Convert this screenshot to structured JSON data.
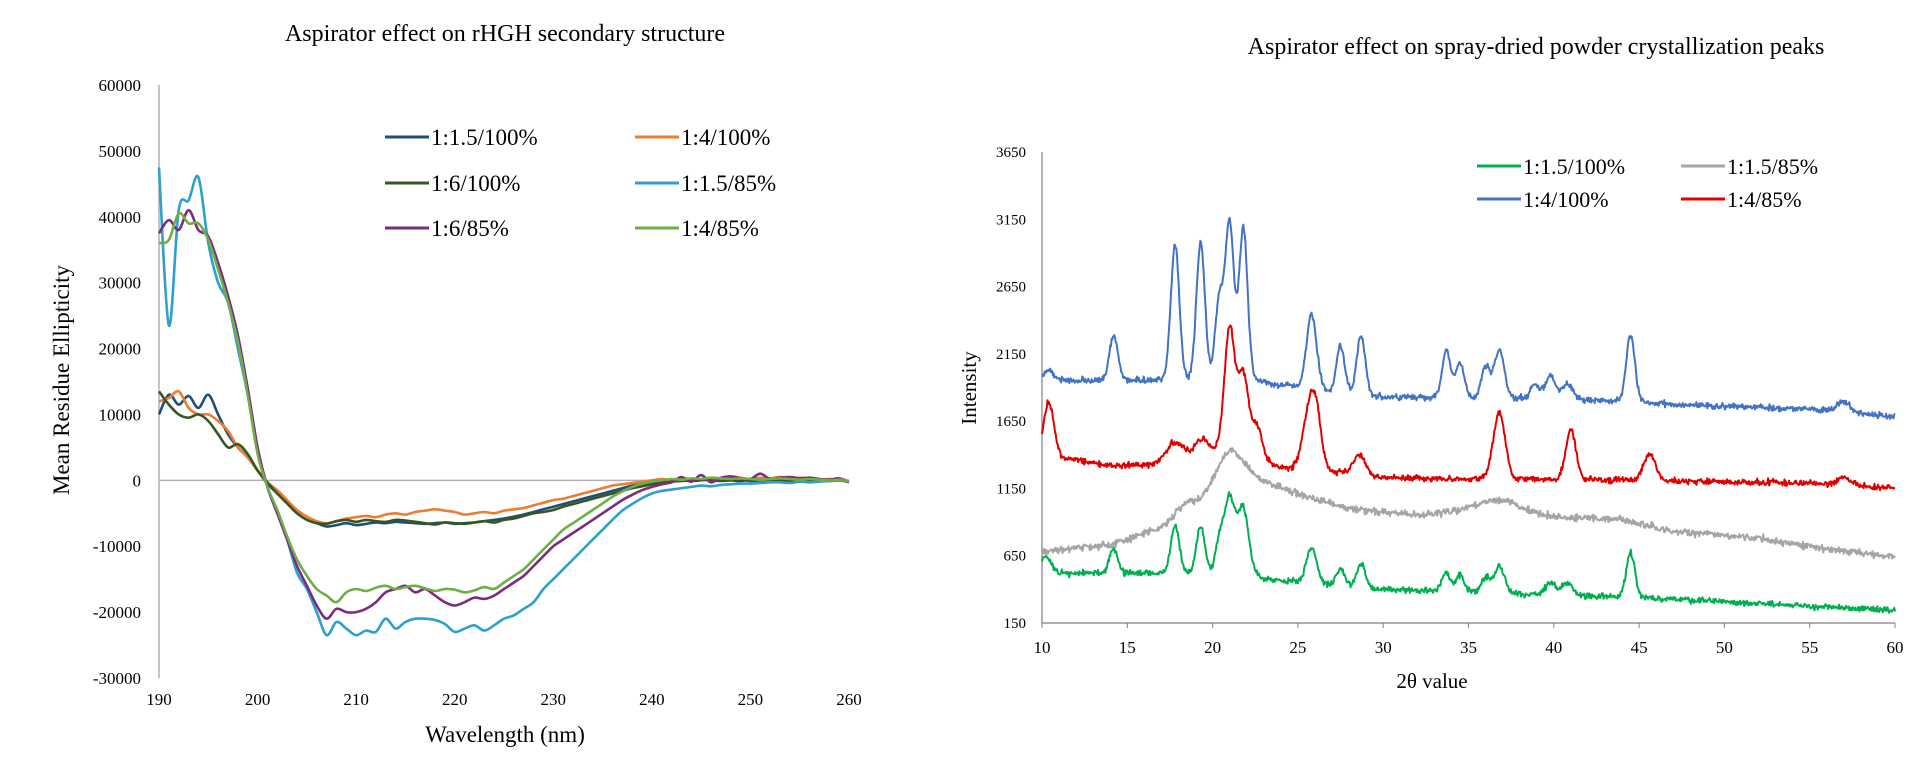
{
  "chart_data": [
    {
      "type": "line",
      "title": "Aspirator effect on rHGH secondary structure",
      "xlabel": "Wavelength (nm)",
      "ylabel": "Mean Residue Ellipticity",
      "xlim": [
        190,
        260
      ],
      "ylim": [
        -30000,
        60000
      ],
      "xticks": [
        190,
        200,
        210,
        220,
        230,
        240,
        250,
        260
      ],
      "xtick_labels": [
        "190",
        "200",
        "210",
        "220",
        "230",
        "240",
        "250",
        "260"
      ],
      "yticks": [
        -30000,
        -20000,
        -10000,
        0,
        10000,
        20000,
        30000,
        40000,
        50000,
        60000
      ],
      "ytick_labels": [
        "-30000",
        "-20000",
        "-10000",
        "0",
        "10000",
        "20000",
        "30000",
        "40000",
        "50000",
        "60000"
      ],
      "grid": false,
      "legend_position": "top-right",
      "x": [
        190,
        191,
        192,
        193,
        194,
        195,
        196,
        197,
        198,
        199,
        200,
        201,
        202,
        203,
        204,
        205,
        206,
        207,
        208,
        209,
        210,
        211,
        212,
        213,
        214,
        215,
        216,
        217,
        218,
        219,
        220,
        221,
        222,
        223,
        224,
        225,
        226,
        227,
        228,
        229,
        230,
        231,
        232,
        233,
        234,
        235,
        236,
        237,
        238,
        239,
        240,
        241,
        242,
        243,
        244,
        245,
        246,
        247,
        248,
        249,
        250,
        251,
        252,
        253,
        254,
        255,
        256,
        257,
        258,
        259,
        260
      ],
      "series": [
        {
          "name": "1:1.5/100%",
          "color": "#1f4e79",
          "values": [
            10000,
            13000,
            11500,
            12800,
            11000,
            13000,
            10000,
            7000,
            5000,
            3500,
            1500,
            -500,
            -2000,
            -3500,
            -5000,
            -6000,
            -6500,
            -7000,
            -6800,
            -6500,
            -6800,
            -6600,
            -6400,
            -6500,
            -6300,
            -6400,
            -6500,
            -6600,
            -6500,
            -6400,
            -6600,
            -6500,
            -6400,
            -6200,
            -6000,
            -5800,
            -5500,
            -5200,
            -4800,
            -4400,
            -4000,
            -3600,
            -3200,
            -2800,
            -2400,
            -2000,
            -1600,
            -1200,
            -800,
            -500,
            -300,
            -200,
            -100,
            0,
            -100,
            0,
            200,
            100,
            0,
            -100,
            100,
            0,
            100,
            -100,
            0,
            100,
            0,
            -100,
            100,
            0,
            -200
          ]
        },
        {
          "name": "1:4/100%",
          "color": "#ed7d31",
          "values": [
            12000,
            12500,
            13500,
            11000,
            10000,
            10000,
            9000,
            7500,
            5000,
            3500,
            1500,
            -300,
            -1500,
            -3000,
            -4500,
            -5500,
            -6200,
            -6500,
            -6200,
            -5800,
            -5600,
            -5400,
            -5600,
            -5200,
            -5000,
            -5200,
            -4800,
            -4600,
            -4400,
            -4600,
            -4800,
            -5200,
            -5000,
            -4800,
            -5000,
            -4600,
            -4400,
            -4200,
            -3800,
            -3400,
            -3000,
            -2800,
            -2400,
            -2000,
            -1600,
            -1200,
            -800,
            -600,
            -400,
            -200,
            0,
            200,
            0,
            300,
            200,
            100,
            300,
            200,
            600,
            400,
            200,
            400,
            300,
            500,
            200,
            400,
            300,
            100,
            200,
            0,
            -300
          ]
        },
        {
          "name": "1:6/100%",
          "color": "#375623",
          "values": [
            13500,
            11500,
            10000,
            9500,
            10000,
            9000,
            7000,
            5000,
            5500,
            4000,
            1500,
            -300,
            -2000,
            -3500,
            -5000,
            -6000,
            -6500,
            -6600,
            -6200,
            -6000,
            -6300,
            -6000,
            -6200,
            -6300,
            -6000,
            -6100,
            -6300,
            -6500,
            -6700,
            -6400,
            -6500,
            -6600,
            -6400,
            -6200,
            -6400,
            -6000,
            -5800,
            -5400,
            -5000,
            -4800,
            -4500,
            -4000,
            -3600,
            -3200,
            -2800,
            -2400,
            -2000,
            -1600,
            -1200,
            -900,
            -600,
            -400,
            -200,
            -100,
            0,
            100,
            0,
            -100,
            0,
            100,
            -100,
            0,
            100,
            0,
            -100,
            0,
            100,
            0,
            -100,
            0,
            -100
          ]
        },
        {
          "name": "1:1.5/85%",
          "color": "#2e9fd0",
          "values": [
            47500,
            23500,
            41000,
            42500,
            46000,
            36000,
            30000,
            27000,
            20000,
            13000,
            4500,
            -1000,
            -5000,
            -9000,
            -14000,
            -16500,
            -20000,
            -23500,
            -21500,
            -22500,
            -23500,
            -22800,
            -23000,
            -21000,
            -22500,
            -21500,
            -21000,
            -21000,
            -21200,
            -21800,
            -23000,
            -22500,
            -22000,
            -22800,
            -22000,
            -21000,
            -20500,
            -19500,
            -18500,
            -16500,
            -15000,
            -13500,
            -12000,
            -10500,
            -9000,
            -7500,
            -6000,
            -4600,
            -3600,
            -2700,
            -2000,
            -1600,
            -1400,
            -1200,
            -1000,
            -800,
            -900,
            -700,
            -600,
            -500,
            -500,
            -400,
            -300,
            -300,
            -400,
            -200,
            -300,
            -200,
            -100,
            0,
            -200
          ]
        },
        {
          "name": "1:6/85%",
          "color": "#7b2c7f",
          "values": [
            37500,
            39500,
            38000,
            41000,
            38000,
            37000,
            33000,
            28000,
            22000,
            14000,
            5000,
            -1000,
            -5000,
            -9000,
            -13000,
            -16000,
            -19000,
            -21000,
            -19500,
            -20000,
            -20000,
            -19500,
            -18500,
            -17000,
            -16500,
            -16000,
            -17000,
            -16500,
            -17500,
            -18500,
            -19000,
            -18500,
            -17800,
            -18000,
            -17500,
            -16500,
            -15500,
            -14500,
            -13000,
            -11500,
            -10000,
            -9000,
            -8000,
            -7000,
            -6000,
            -5000,
            -4000,
            -3000,
            -2200,
            -1500,
            -1000,
            -600,
            -300,
            500,
            -200,
            800,
            -300,
            400,
            600,
            300,
            200,
            1000,
            200,
            400,
            500,
            300,
            400,
            200,
            100,
            300,
            -200
          ]
        },
        {
          "name": "1:4/85%",
          "color": "#70ad47",
          "values": [
            36000,
            36500,
            40500,
            39000,
            39000,
            36500,
            32000,
            27000,
            21000,
            13000,
            4000,
            -1000,
            -4500,
            -8500,
            -12000,
            -14500,
            -16500,
            -17500,
            -18500,
            -17000,
            -16500,
            -16800,
            -16300,
            -16000,
            -16500,
            -16200,
            -16000,
            -16400,
            -16800,
            -16500,
            -16600,
            -17000,
            -16700,
            -16200,
            -16500,
            -15500,
            -14500,
            -13500,
            -12000,
            -10500,
            -9000,
            -7500,
            -6500,
            -5500,
            -4500,
            -3500,
            -2500,
            -1700,
            -1000,
            -500,
            -200,
            0,
            200,
            100,
            300,
            200,
            400,
            300,
            200,
            300,
            200,
            100,
            200,
            300,
            200,
            100,
            200,
            100,
            0,
            100,
            -100
          ]
        }
      ]
    },
    {
      "type": "line",
      "title": "Aspirator effect on spray-dried powder crystallization peaks",
      "xlabel": "2θ value",
      "ylabel": "Intensity",
      "xlim": [
        10,
        60
      ],
      "ylim": [
        150,
        3650
      ],
      "xticks": [
        10,
        15,
        20,
        25,
        30,
        35,
        40,
        45,
        50,
        55,
        60
      ],
      "xtick_labels": [
        "10",
        "15",
        "20",
        "25",
        "30",
        "35",
        "40",
        "45",
        "50",
        "55",
        "60"
      ],
      "yticks": [
        150,
        650,
        1150,
        1650,
        2150,
        2650,
        3150,
        3650
      ],
      "ytick_labels": [
        "150",
        "650",
        "1150",
        "1650",
        "2150",
        "2650",
        "3150",
        "3650"
      ],
      "grid": false,
      "legend_position": "top-right",
      "series": [
        {
          "name": "1:1.5/100%",
          "color": "#00b050",
          "baseline": [
            [
              10,
              520
            ],
            [
              20,
              520
            ],
            [
              21,
              650
            ],
            [
              23,
              480
            ],
            [
              30,
              400
            ],
            [
              45,
              340
            ],
            [
              50,
              310
            ],
            [
              60,
              240
            ]
          ],
          "peaks": [
            [
              10.2,
              130,
              0.3
            ],
            [
              14.2,
              180,
              0.25
            ],
            [
              17.8,
              350,
              0.25
            ],
            [
              19.3,
              350,
              0.25
            ],
            [
              20.4,
              200,
              0.25
            ],
            [
              21.0,
              430,
              0.3
            ],
            [
              21.8,
              430,
              0.3
            ],
            [
              25.8,
              260,
              0.3
            ],
            [
              27.5,
              120,
              0.25
            ],
            [
              28.7,
              180,
              0.25
            ],
            [
              33.7,
              140,
              0.25
            ],
            [
              34.5,
              120,
              0.25
            ],
            [
              36.0,
              110,
              0.25
            ],
            [
              36.8,
              200,
              0.3
            ],
            [
              39.8,
              90,
              0.3
            ],
            [
              40.8,
              90,
              0.3
            ],
            [
              44.5,
              330,
              0.25
            ]
          ],
          "noise": 22,
          "seed": 11
        },
        {
          "name": "1:1.5/85%",
          "color": "#a5a5a5",
          "baseline": [
            [
              10,
              680
            ],
            [
              14,
              730
            ],
            [
              17.5,
              880
            ],
            [
              19,
              1010
            ],
            [
              21,
              1300
            ],
            [
              22.5,
              1230
            ],
            [
              25,
              1110
            ],
            [
              28,
              1000
            ],
            [
              32,
              950
            ],
            [
              36,
              990
            ],
            [
              40,
              940
            ],
            [
              44,
              920
            ],
            [
              47,
              830
            ],
            [
              52,
              780
            ],
            [
              56,
              700
            ],
            [
              60,
              640
            ]
          ],
          "peaks": [
            [
              18.3,
              80,
              0.6
            ],
            [
              21,
              140,
              0.8
            ],
            [
              36.8,
              80,
              1.2
            ]
          ],
          "noise": 25,
          "seed": 23
        },
        {
          "name": "1:4/100%",
          "color": "#4472c4",
          "baseline": [
            [
              10,
              1950
            ],
            [
              20,
              1960
            ],
            [
              22,
              1960
            ],
            [
              25,
              1900
            ],
            [
              28,
              1850
            ],
            [
              30,
              1830
            ],
            [
              40,
              1820
            ],
            [
              50,
              1760
            ],
            [
              55,
              1740
            ],
            [
              60,
              1680
            ]
          ],
          "peaks": [
            [
              10.4,
              80,
              0.3
            ],
            [
              14.2,
              330,
              0.25
            ],
            [
              17.8,
              1000,
              0.25
            ],
            [
              19.3,
              1020,
              0.25
            ],
            [
              20.4,
              600,
              0.25
            ],
            [
              21.0,
              1150,
              0.25
            ],
            [
              21.8,
              1120,
              0.25
            ],
            [
              25.8,
              550,
              0.3
            ],
            [
              27.5,
              350,
              0.25
            ],
            [
              28.7,
              450,
              0.25
            ],
            [
              33.7,
              350,
              0.25
            ],
            [
              34.5,
              250,
              0.25
            ],
            [
              36.0,
              230,
              0.25
            ],
            [
              36.8,
              350,
              0.3
            ],
            [
              38.9,
              100,
              0.25
            ],
            [
              39.8,
              170,
              0.3
            ],
            [
              40.8,
              110,
              0.3
            ],
            [
              44.5,
              500,
              0.25
            ],
            [
              57,
              80,
              0.4
            ]
          ],
          "noise": 22,
          "seed": 37
        },
        {
          "name": "1:4/85%",
          "color": "#e00000",
          "baseline": [
            [
              10,
              1400
            ],
            [
              14,
              1320
            ],
            [
              18,
              1330
            ],
            [
              20,
              1420
            ],
            [
              21,
              1500
            ],
            [
              24,
              1300
            ],
            [
              27,
              1280
            ],
            [
              30,
              1230
            ],
            [
              35,
              1220
            ],
            [
              40,
              1220
            ],
            [
              45,
              1210
            ],
            [
              50,
              1200
            ],
            [
              55,
              1190
            ],
            [
              60,
              1150
            ]
          ],
          "peaks": [
            [
              10.4,
              400,
              0.3
            ],
            [
              17.8,
              170,
              0.5
            ],
            [
              19.3,
              130,
              0.4
            ],
            [
              21.0,
              850,
              0.3
            ],
            [
              21.8,
              550,
              0.3
            ],
            [
              22.6,
              220,
              0.3
            ],
            [
              25.7,
              450,
              0.4
            ],
            [
              26.1,
              250,
              0.3
            ],
            [
              28.6,
              150,
              0.35
            ],
            [
              36.8,
              490,
              0.35
            ],
            [
              41.0,
              370,
              0.3
            ],
            [
              45.6,
              200,
              0.35
            ],
            [
              57,
              60,
              0.4
            ]
          ],
          "noise": 22,
          "seed": 53
        }
      ]
    }
  ]
}
